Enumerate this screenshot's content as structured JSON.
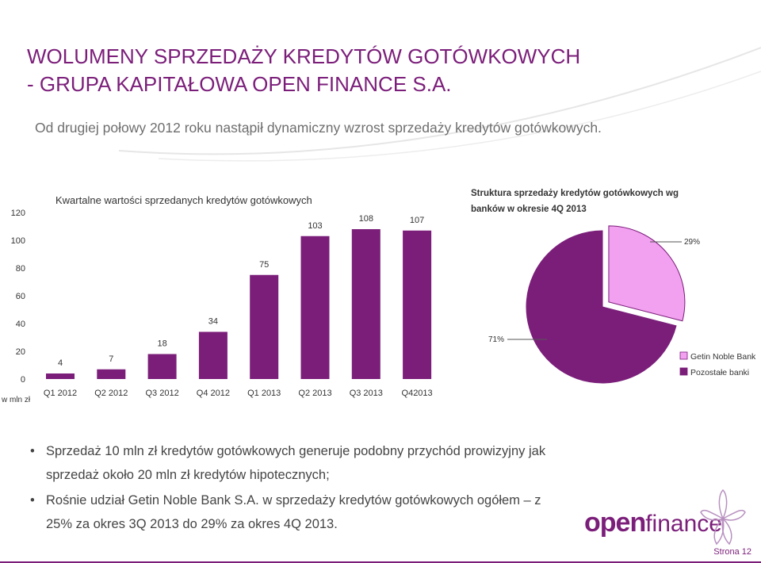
{
  "slide": {
    "title_line1": "WOLUMENY SPRZEDAŻY KREDYTÓW GOTÓWKOWYCH",
    "title_line2": "- GRUPA KAPITAŁOWA OPEN FINANCE S.A.",
    "subtitle": "Od drugiej połowy 2012 roku nastąpił dynamiczny wzrost sprzedaży kredytów gotówkowych.",
    "bullets": [
      {
        "line1": "Sprzedaż 10 mln zł kredytów gotówkowych generuje podobny przychód prowizyjny jak",
        "line2": "sprzedaż około 20 mln zł kredytów hipotecznych;"
      },
      {
        "line1": "Rośnie udział Getin Noble Bank S.A. w sprzedaży kredytów gotówkowych ogółem – z",
        "line2": "25% za okres 3Q 2013 do 29% za okres 4Q 2013."
      }
    ],
    "bullet_glyph": "•",
    "logo": {
      "open": "open",
      "finance": "finance"
    },
    "page_number": "Strona 12"
  },
  "colors": {
    "primary": "#7b1e7a",
    "highlight": "#f2a0f0"
  },
  "chart_data": [
    {
      "type": "bar",
      "title": "Kwartalne wartości sprzedanych kredytów gotówkowych",
      "ylabel": "w mln zł",
      "ylim": [
        0,
        120
      ],
      "yticks": [
        0,
        20,
        40,
        60,
        80,
        100,
        120
      ],
      "grid": false,
      "categories": [
        "Q1 2012",
        "Q2 2012",
        "Q3 2012",
        "Q4 2012",
        "Q1 2013",
        "Q2 2013",
        "Q3 2013",
        "Q42013"
      ],
      "values": [
        4,
        7,
        18,
        34,
        75,
        103,
        108,
        107
      ],
      "color": "#7b1e7a"
    },
    {
      "type": "pie",
      "title": "Struktura sprzedaży kredytów gotówkowych wg banków w okresie 4Q 2013",
      "slices": [
        {
          "label": "Getin Noble Bank",
          "value": 29,
          "display": "29%",
          "color": "#f2a0f0"
        },
        {
          "label": "Pozostałe banki",
          "value": 71,
          "display": "71%",
          "color": "#7b1e7a"
        }
      ],
      "legend": "right"
    }
  ]
}
